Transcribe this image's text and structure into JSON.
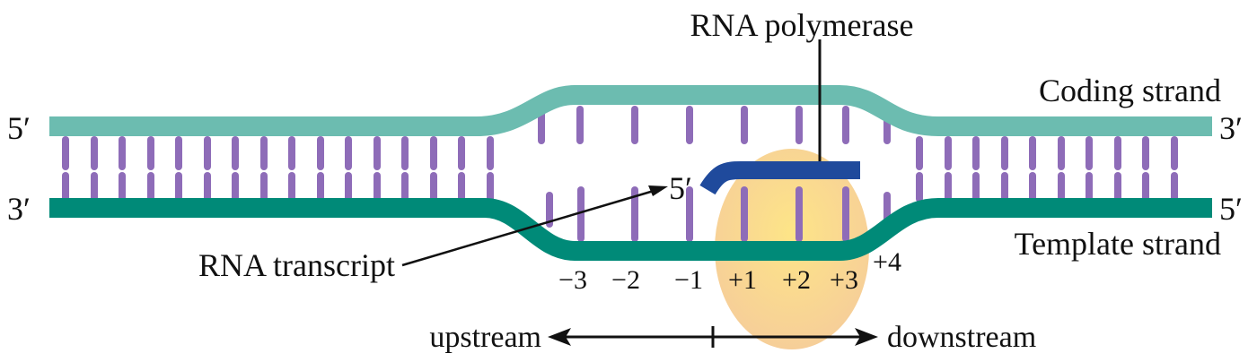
{
  "labels": {
    "rna_polymerase": "RNA polymerase",
    "coding_strand": "Coding strand",
    "template_strand": "Template strand",
    "rna_transcript": "RNA transcript",
    "upstream": "upstream",
    "downstream": "downstream",
    "coding_left_end": "5′",
    "coding_right_end": "3′",
    "template_left_end": "3′",
    "template_right_end": "5′",
    "transcript_end": "5′"
  },
  "positions": [
    "−3",
    "−2",
    "−1",
    "+1",
    "+2",
    "+3",
    "+4"
  ],
  "colors": {
    "coding_strand": "#6cbcb0",
    "template_strand": "#008a78",
    "base": "#8e6cb8",
    "rna": "#1f4a9c",
    "polymerase_edge": "#f5c88e",
    "polymerase_core": "#fde27a"
  }
}
